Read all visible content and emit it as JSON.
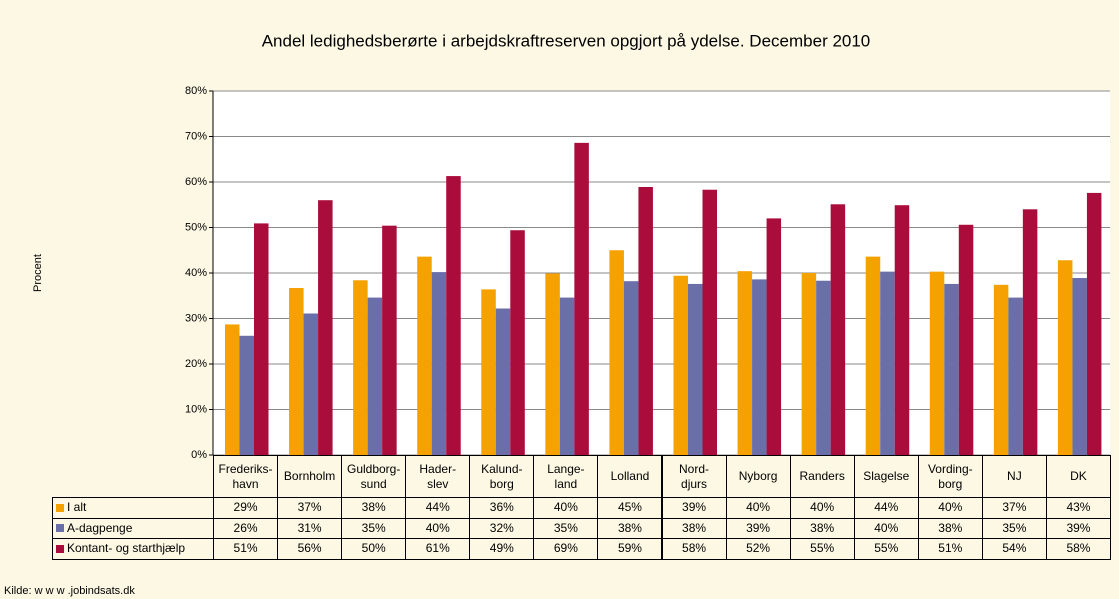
{
  "chart_data": {
    "type": "bar",
    "title": "Andel ledighedsberørte i arbejdskraftreserven opgjort på ydelse. December 2010",
    "y_label": "Procent",
    "source": "Kilde: w w w .jobindsats.dk",
    "categories": [
      "Frederiks-\nhavn",
      "Bornholm",
      "Guldborg-\nsund",
      "Hader-\nslev",
      "Kalund-\nborg",
      "Lange-\nland",
      "Lolland",
      "Nord-\ndjurs",
      "Nyborg",
      "Randers",
      "Slagelse",
      "Vording-\nborg",
      "NJ",
      "DK"
    ],
    "series": [
      {
        "name": "I alt",
        "color": "#f5a100",
        "values": [
          28.7,
          36.7,
          38.4,
          43.6,
          36.4,
          39.9,
          45.0,
          39.4,
          40.4,
          40.0,
          43.6,
          40.3,
          37.4,
          42.8
        ],
        "value_labels": [
          "29%",
          "37%",
          "38%",
          "44%",
          "36%",
          "40%",
          "45%",
          "39%",
          "40%",
          "40%",
          "44%",
          "40%",
          "37%",
          "43%"
        ]
      },
      {
        "name": "A-dagpenge",
        "color": "#6b6fa8",
        "values": [
          26.2,
          31.1,
          34.6,
          40.2,
          32.2,
          34.6,
          38.2,
          37.6,
          38.6,
          38.3,
          40.3,
          37.6,
          34.6,
          38.9
        ],
        "value_labels": [
          "26%",
          "31%",
          "35%",
          "40%",
          "32%",
          "35%",
          "38%",
          "38%",
          "39%",
          "38%",
          "40%",
          "38%",
          "35%",
          "39%"
        ]
      },
      {
        "name": "Kontant- og starthjælp",
        "color": "#aa0c3b",
        "values": [
          50.9,
          56.0,
          50.4,
          61.3,
          49.4,
          68.6,
          58.9,
          58.3,
          52.0,
          55.1,
          54.9,
          50.6,
          54.0,
          57.6
        ],
        "value_labels": [
          "51%",
          "56%",
          "50%",
          "61%",
          "49%",
          "69%",
          "59%",
          "58%",
          "52%",
          "55%",
          "55%",
          "51%",
          "54%",
          "58%"
        ]
      }
    ],
    "ylim": [
      0,
      80
    ],
    "yticks": [
      {
        "value": 0,
        "label": "0%"
      },
      {
        "value": 10,
        "label": "10%"
      },
      {
        "value": 20,
        "label": "20%"
      },
      {
        "value": 30,
        "label": "30%"
      },
      {
        "value": 40,
        "label": "40%"
      },
      {
        "value": 50,
        "label": "50%"
      },
      {
        "value": 60,
        "label": "60%"
      },
      {
        "value": 70,
        "label": "70%"
      },
      {
        "value": 80,
        "label": "80%"
      }
    ],
    "grid": true
  }
}
